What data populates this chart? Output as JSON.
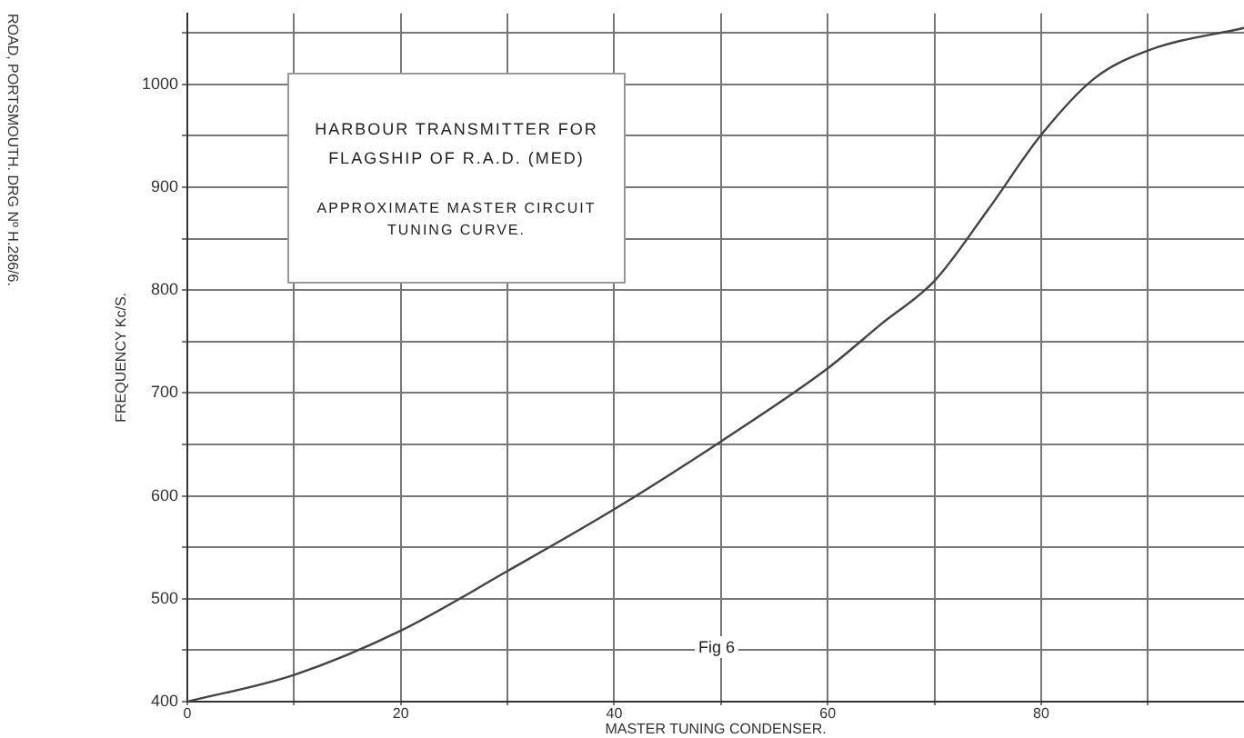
{
  "chart_data": {
    "type": "line",
    "title": "HARBOUR TRANSMITTER FOR FLAGSHIP OF R.A.D. (MED)",
    "subtitle": "APPROXIMATE MASTER CIRCUIT TUNING CURVE.",
    "xlabel": "MASTER TUNING CONDENSER.",
    "ylabel": "FREQUENCY Kc/S.",
    "annotations": [
      "Fig 6",
      "ROAD, PORTSMOUTH. DRG Nº H.286/6."
    ],
    "x": [
      0,
      10,
      20,
      30,
      40,
      50,
      60,
      65,
      70,
      75,
      80,
      85,
      90,
      99
    ],
    "series": [
      {
        "color": "#444444",
        "values": [
          400,
          426,
          469,
          527,
          587,
          653,
          724,
          767,
          809,
          878,
          951,
          1006,
          1033,
          1055
        ]
      }
    ],
    "xlim": [
      0,
      99
    ],
    "ylim": [
      400,
      1069
    ],
    "xticks": [
      0,
      {
        "value": 10,
        "label": null
      },
      20,
      {
        "value": 30,
        "label": null
      },
      40,
      {
        "value": 50,
        "label": null
      },
      60,
      {
        "value": 70,
        "label": null
      },
      80,
      {
        "value": 90,
        "label": null
      }
    ],
    "yticks": [
      400,
      {
        "value": 450,
        "label": null
      },
      500,
      {
        "value": 550,
        "label": null
      },
      600,
      {
        "value": 650,
        "label": null
      },
      700,
      {
        "value": 750,
        "label": null
      },
      800,
      {
        "value": 850,
        "label": null
      },
      900,
      {
        "value": 950,
        "label": null
      },
      1000,
      {
        "value": 1050,
        "label": null
      }
    ],
    "grid": true,
    "legend": false,
    "marker": "none",
    "line_style": "solid"
  }
}
